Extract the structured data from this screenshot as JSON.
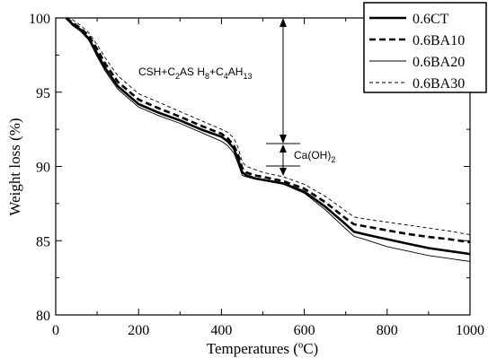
{
  "chart_data": {
    "type": "line",
    "xlabel": "Temperatures (ºC)",
    "ylabel": "Weight loss (%)",
    "xlim": [
      0,
      1000
    ],
    "ylim": [
      80,
      100
    ],
    "xticks": [
      0,
      200,
      400,
      600,
      800,
      1000
    ],
    "yticks": [
      80,
      85,
      90,
      95,
      100
    ],
    "x_tick_labels": [
      "0",
      "200",
      "400",
      "600",
      "800",
      "1000"
    ],
    "y_tick_labels": [
      "80",
      "85",
      "90",
      "95",
      "100"
    ],
    "grid": false,
    "legend_position": "top-right",
    "annotations": {
      "hydrates": {
        "base": "CSH+C",
        "s1": "2",
        "mid1": "AS H",
        "s2": "8",
        "mid2": "+C",
        "s3": "4",
        "mid3": "AH",
        "s4": "13"
      },
      "portlandite": {
        "base": "Ca(OH)",
        "s1": "2"
      }
    },
    "series": [
      {
        "name": "0.6CT",
        "style": "thick-solid",
        "x": [
          25,
          40,
          60,
          80,
          100,
          120,
          150,
          200,
          250,
          300,
          350,
          400,
          415,
          430,
          440,
          450,
          460,
          480,
          500,
          550,
          600,
          650,
          700,
          720,
          750,
          800,
          850,
          900,
          950,
          1000
        ],
        "y": [
          100,
          99.6,
          99.2,
          98.6,
          97.6,
          96.6,
          95.4,
          94.2,
          93.6,
          93.1,
          92.5,
          92.0,
          91.7,
          91.2,
          90.5,
          89.6,
          89.4,
          89.2,
          89.1,
          88.85,
          88.3,
          87.3,
          86.1,
          85.6,
          85.4,
          85.1,
          84.8,
          84.5,
          84.3,
          84.1
        ]
      },
      {
        "name": "0.6BA10",
        "style": "thick-dashed",
        "x": [
          25,
          40,
          60,
          80,
          100,
          120,
          150,
          200,
          250,
          300,
          350,
          400,
          415,
          430,
          440,
          450,
          460,
          480,
          500,
          550,
          600,
          650,
          700,
          720,
          750,
          800,
          850,
          900,
          950,
          1000
        ],
        "y": [
          100,
          99.7,
          99.3,
          98.8,
          97.9,
          96.9,
          95.7,
          94.5,
          93.9,
          93.35,
          92.75,
          92.2,
          91.9,
          91.4,
          90.8,
          89.9,
          89.6,
          89.4,
          89.3,
          89.0,
          88.5,
          87.6,
          86.5,
          86.1,
          85.95,
          85.7,
          85.45,
          85.25,
          85.1,
          84.9
        ]
      },
      {
        "name": "0.6BA20",
        "style": "thin-solid",
        "x": [
          25,
          40,
          60,
          80,
          100,
          120,
          150,
          200,
          250,
          300,
          350,
          400,
          415,
          430,
          440,
          450,
          460,
          480,
          500,
          550,
          600,
          650,
          700,
          720,
          750,
          800,
          850,
          900,
          950,
          1000
        ],
        "y": [
          100,
          99.5,
          99.1,
          98.5,
          97.4,
          96.4,
          95.2,
          94.0,
          93.4,
          92.9,
          92.3,
          91.7,
          91.4,
          90.9,
          90.2,
          89.4,
          89.3,
          89.15,
          89.05,
          88.8,
          88.2,
          87.1,
          85.8,
          85.3,
          85.05,
          84.6,
          84.3,
          84.0,
          83.8,
          83.6
        ]
      },
      {
        "name": "0.6BA30",
        "style": "thin-dashed",
        "x": [
          25,
          40,
          60,
          80,
          100,
          120,
          150,
          200,
          250,
          300,
          350,
          400,
          415,
          430,
          440,
          450,
          460,
          480,
          500,
          550,
          600,
          650,
          700,
          720,
          750,
          800,
          850,
          900,
          950,
          1000
        ],
        "y": [
          100,
          99.9,
          99.5,
          99.0,
          98.2,
          97.3,
          96.1,
          94.9,
          94.3,
          93.7,
          93.1,
          92.5,
          92.3,
          91.9,
          91.3,
          90.3,
          90.0,
          89.8,
          89.6,
          89.3,
          88.8,
          88.0,
          87.0,
          86.6,
          86.45,
          86.25,
          86.05,
          85.85,
          85.65,
          85.4
        ]
      }
    ]
  }
}
